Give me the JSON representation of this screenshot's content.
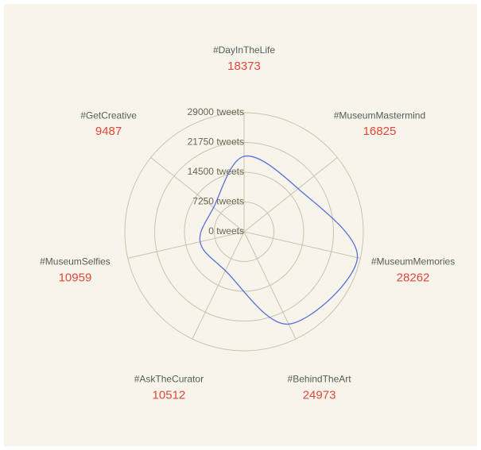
{
  "chart_data": {
    "type": "radar",
    "categories": [
      "#DayInTheLife",
      "#MuseumMastermind",
      "#MuseumMemories",
      "#BehindTheArt",
      "#AskTheCurator",
      "#MuseumSelfies",
      "#GetCreative"
    ],
    "values": [
      18373,
      16825,
      28262,
      24973,
      10512,
      10959,
      9487
    ],
    "color": "#5b6fd8",
    "rlim": [
      0,
      29000
    ],
    "rticks": [
      {
        "value": 0,
        "label": "0 tweets"
      },
      {
        "value": 7250,
        "label": "7250 tweets"
      },
      {
        "value": 14500,
        "label": "14500 tweets"
      },
      {
        "value": 21750,
        "label": "21750 tweets"
      },
      {
        "value": 29000,
        "label": "29000 tweets"
      }
    ],
    "grid": true
  }
}
